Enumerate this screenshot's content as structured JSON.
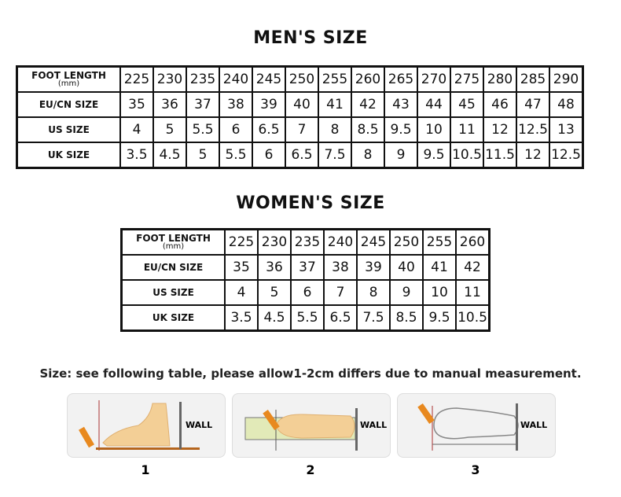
{
  "mens": {
    "title": "MEN'S SIZE",
    "rows": [
      {
        "label": "FOOT LENGTH",
        "sublabel": "(mm)",
        "values": [
          "225",
          "230",
          "235",
          "240",
          "245",
          "250",
          "255",
          "260",
          "265",
          "270",
          "275",
          "280",
          "285",
          "290"
        ]
      },
      {
        "label": "EU/CN  SIZE",
        "values": [
          "35",
          "36",
          "37",
          "38",
          "39",
          "40",
          "41",
          "42",
          "43",
          "44",
          "45",
          "46",
          "47",
          "48"
        ]
      },
      {
        "label": "US  SIZE",
        "values": [
          "4",
          "5",
          "5.5",
          "6",
          "6.5",
          "7",
          "8",
          "8.5",
          "9.5",
          "10",
          "11",
          "12",
          "12.5",
          "13"
        ]
      },
      {
        "label": "UK  SIZE",
        "values": [
          "3.5",
          "4.5",
          "5",
          "5.5",
          "6",
          "6.5",
          "7.5",
          "8",
          "9",
          "9.5",
          "10.5",
          "11.5",
          "12",
          "12.5"
        ]
      }
    ]
  },
  "womens": {
    "title": "WOMEN'S SIZE",
    "rows": [
      {
        "label": "FOOT LENGTH",
        "sublabel": "(mm)",
        "values": [
          "225",
          "230",
          "235",
          "240",
          "245",
          "250",
          "255",
          "260"
        ]
      },
      {
        "label": "EU/CN  SIZE",
        "values": [
          "35",
          "36",
          "37",
          "38",
          "39",
          "40",
          "41",
          "42"
        ]
      },
      {
        "label": "US  SIZE",
        "values": [
          "4",
          "5",
          "6",
          "7",
          "8",
          "9",
          "10",
          "11"
        ]
      },
      {
        "label": "UK  SIZE",
        "values": [
          "3.5",
          "4.5",
          "5.5",
          "6.5",
          "7.5",
          "8.5",
          "9.5",
          "10.5"
        ]
      }
    ]
  },
  "note": "Size: see following table, please allow1-2cm differs due to manual measurement.",
  "steps": [
    {
      "number": "1",
      "wall_label": "WALL"
    },
    {
      "number": "2",
      "wall_label": "WALL"
    },
    {
      "number": "3",
      "wall_label": "WALL"
    }
  ]
}
